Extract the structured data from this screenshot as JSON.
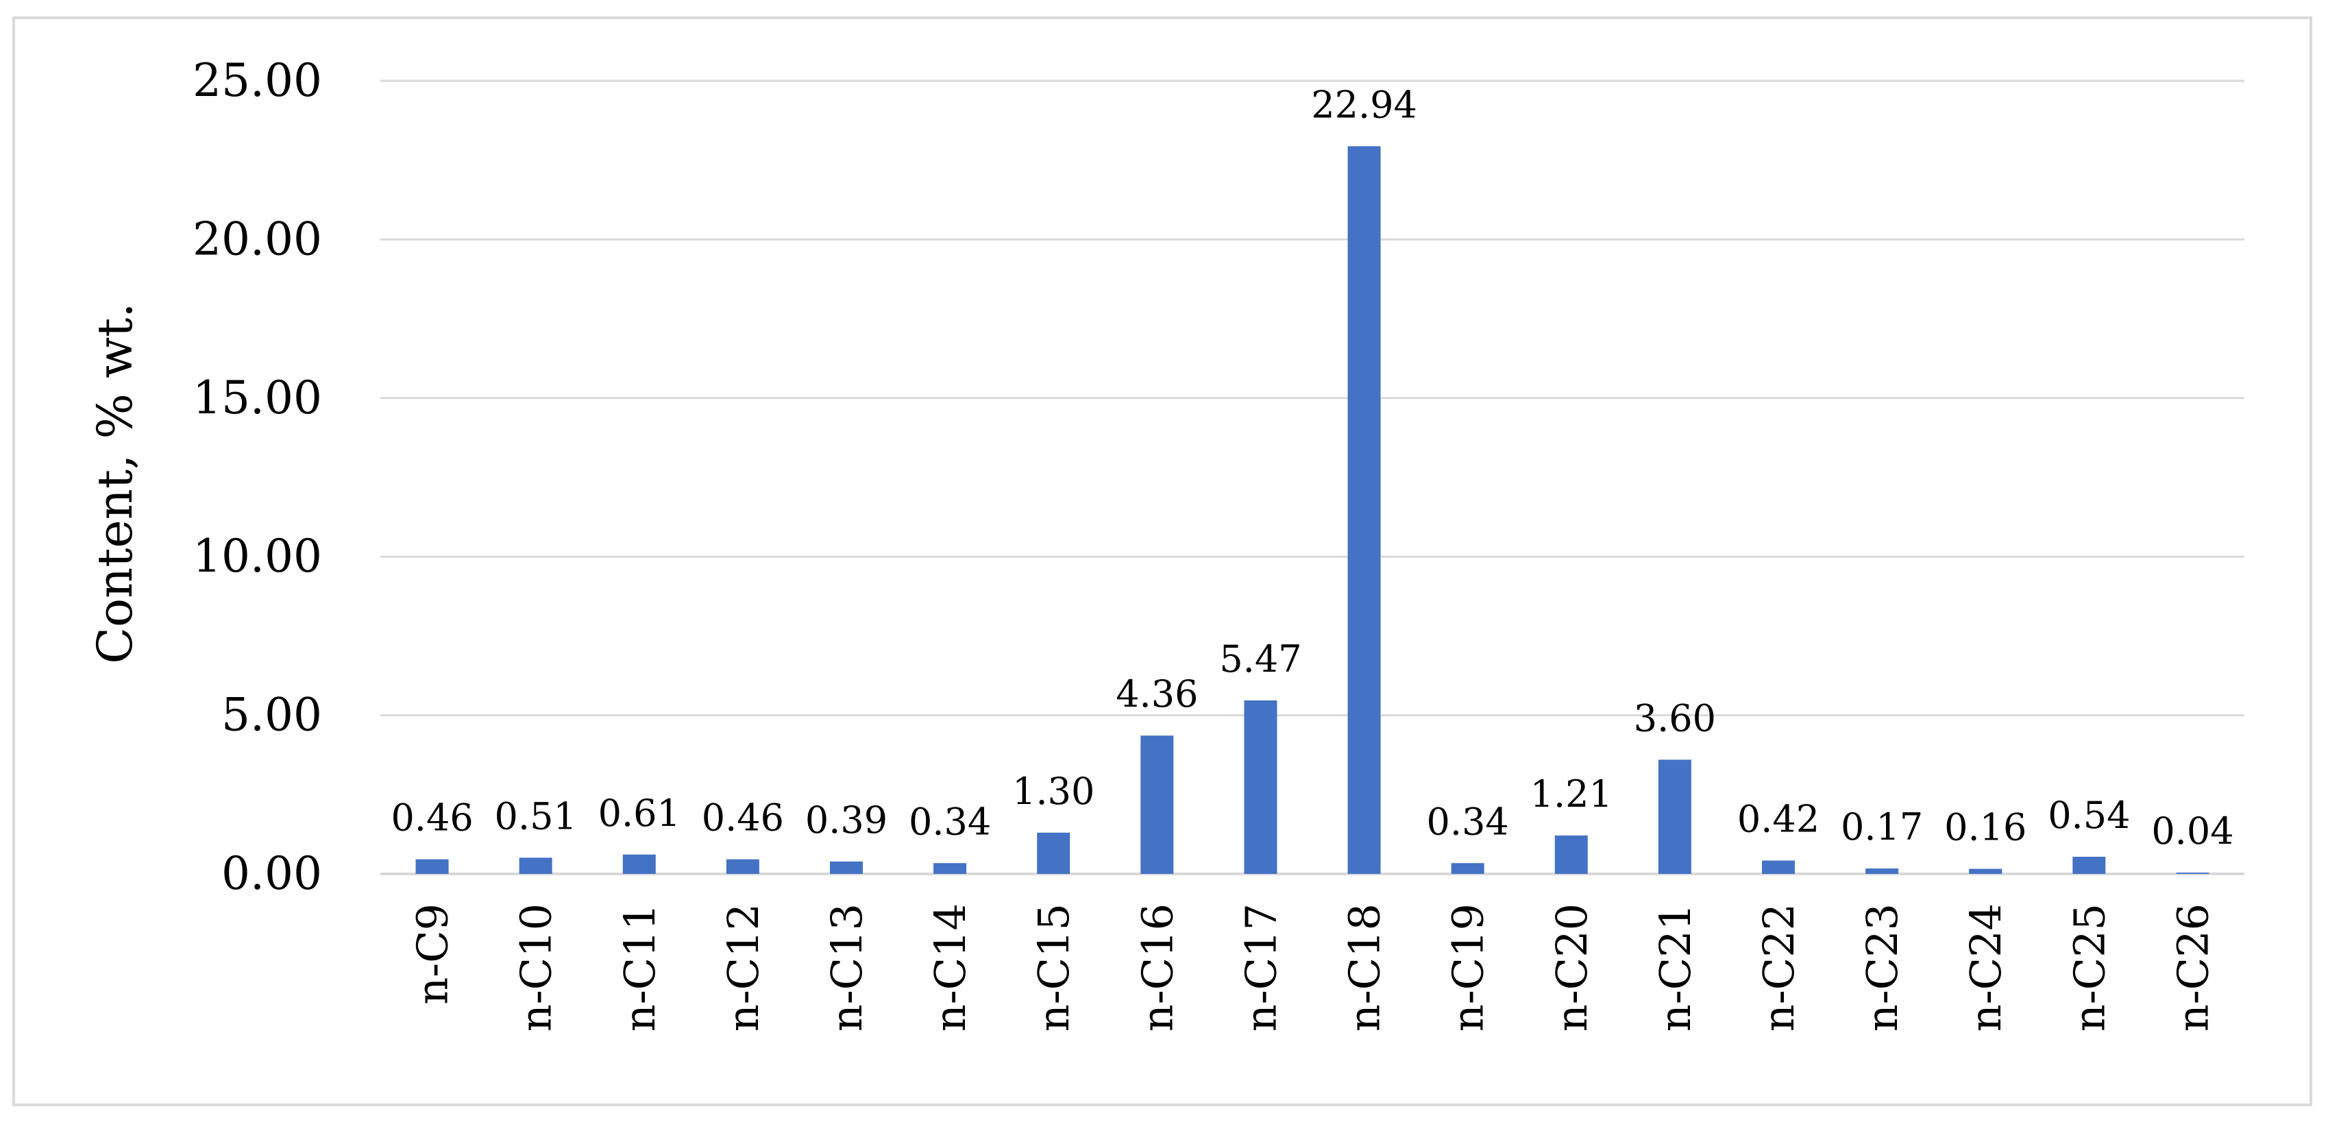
{
  "chart_data": {
    "type": "bar",
    "title": "",
    "xlabel": "",
    "ylabel": "Content, % wt.",
    "categories": [
      "n-C9",
      "n-C10",
      "n-C11",
      "n-C12",
      "n-C13",
      "n-C14",
      "n-C15",
      "n-C16",
      "n-C17",
      "n-C18",
      "n-C19",
      "n-C20",
      "n-C21",
      "n-C22",
      "n-C23",
      "n-C24",
      "n-C25",
      "n-C26"
    ],
    "values": [
      0.46,
      0.51,
      0.61,
      0.46,
      0.39,
      0.34,
      1.3,
      4.36,
      5.47,
      22.94,
      0.34,
      1.21,
      3.6,
      0.42,
      0.17,
      0.16,
      0.54,
      0.04
    ],
    "value_labels": [
      "0.46",
      "0.51",
      "0.61",
      "0.46",
      "0.39",
      "0.34",
      "1.30",
      "4.36",
      "5.47",
      "22.94",
      "0.34",
      "1.21",
      "3.60",
      "0.42",
      "0.17",
      "0.16",
      "0.54",
      "0.04"
    ],
    "ylim": [
      0,
      25
    ],
    "yticks": [
      0,
      5,
      10,
      15,
      20,
      25
    ],
    "ytick_labels": [
      "0.00",
      "5.00",
      "10.00",
      "15.00",
      "20.00",
      "25.00"
    ],
    "grid": true,
    "legend": "none",
    "bar_color": "#4472c4",
    "grid_color": "#d9d9d9",
    "frame_color": "#d9d9d9"
  }
}
